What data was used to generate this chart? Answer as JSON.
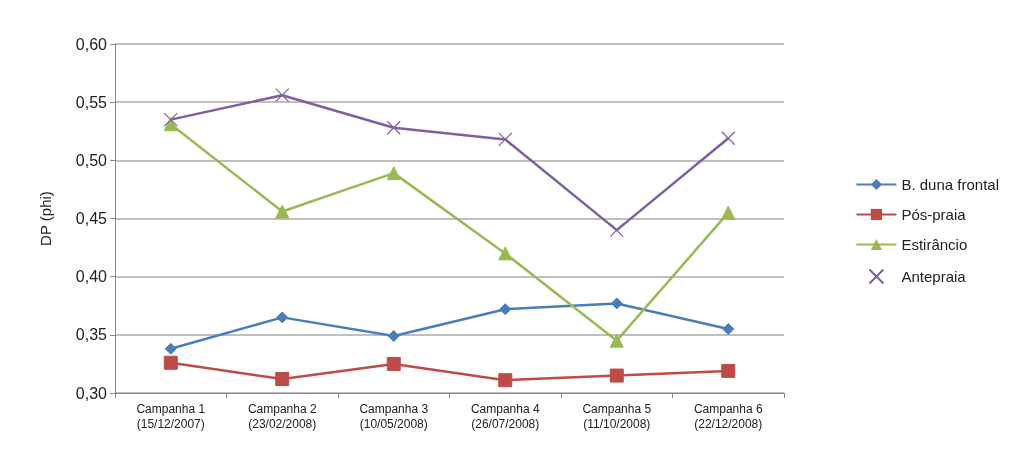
{
  "chart_data": {
    "type": "line",
    "ylabel": "DP (phi)",
    "categories": [
      "Campanha 1\n(15/12/2007)",
      "Campanha 2\n(23/02/2008)",
      "Campanha 3\n(10/05/2008)",
      "Campanha 4\n(26/07/2008)",
      "Campanha 5\n(11/10/2008)",
      "Campanha 6\n(22/12/2008)"
    ],
    "series": [
      {
        "name": "B. duna frontal",
        "color": "#4a7ebb",
        "marker": "diamond",
        "values": [
          0.338,
          0.365,
          0.349,
          0.372,
          0.377,
          0.355
        ]
      },
      {
        "name": "Pós-praia",
        "color": "#be4b48",
        "marker": "square",
        "values": [
          0.326,
          0.312,
          0.325,
          0.311,
          0.315,
          0.319
        ]
      },
      {
        "name": "Estirâncio",
        "color": "#98b954",
        "marker": "triangle",
        "values": [
          0.531,
          0.456,
          0.489,
          0.42,
          0.345,
          0.455
        ]
      },
      {
        "name": "Antepraia",
        "color": "#7d60a0",
        "marker": "cross",
        "values": [
          0.535,
          0.556,
          0.528,
          0.518,
          0.44,
          0.519
        ]
      }
    ],
    "ylim": [
      0.3,
      0.6
    ],
    "yticks": [
      {
        "value": 0.3,
        "label": "0,30"
      },
      {
        "value": 0.35,
        "label": "0,35"
      },
      {
        "value": 0.4,
        "label": "0,40"
      },
      {
        "value": 0.45,
        "label": "0,45"
      },
      {
        "value": 0.5,
        "label": "0,50"
      },
      {
        "value": 0.55,
        "label": "0,55"
      },
      {
        "value": 0.6,
        "label": "0,60"
      }
    ],
    "grid": "y",
    "legend": "right",
    "line_style": "solid"
  }
}
